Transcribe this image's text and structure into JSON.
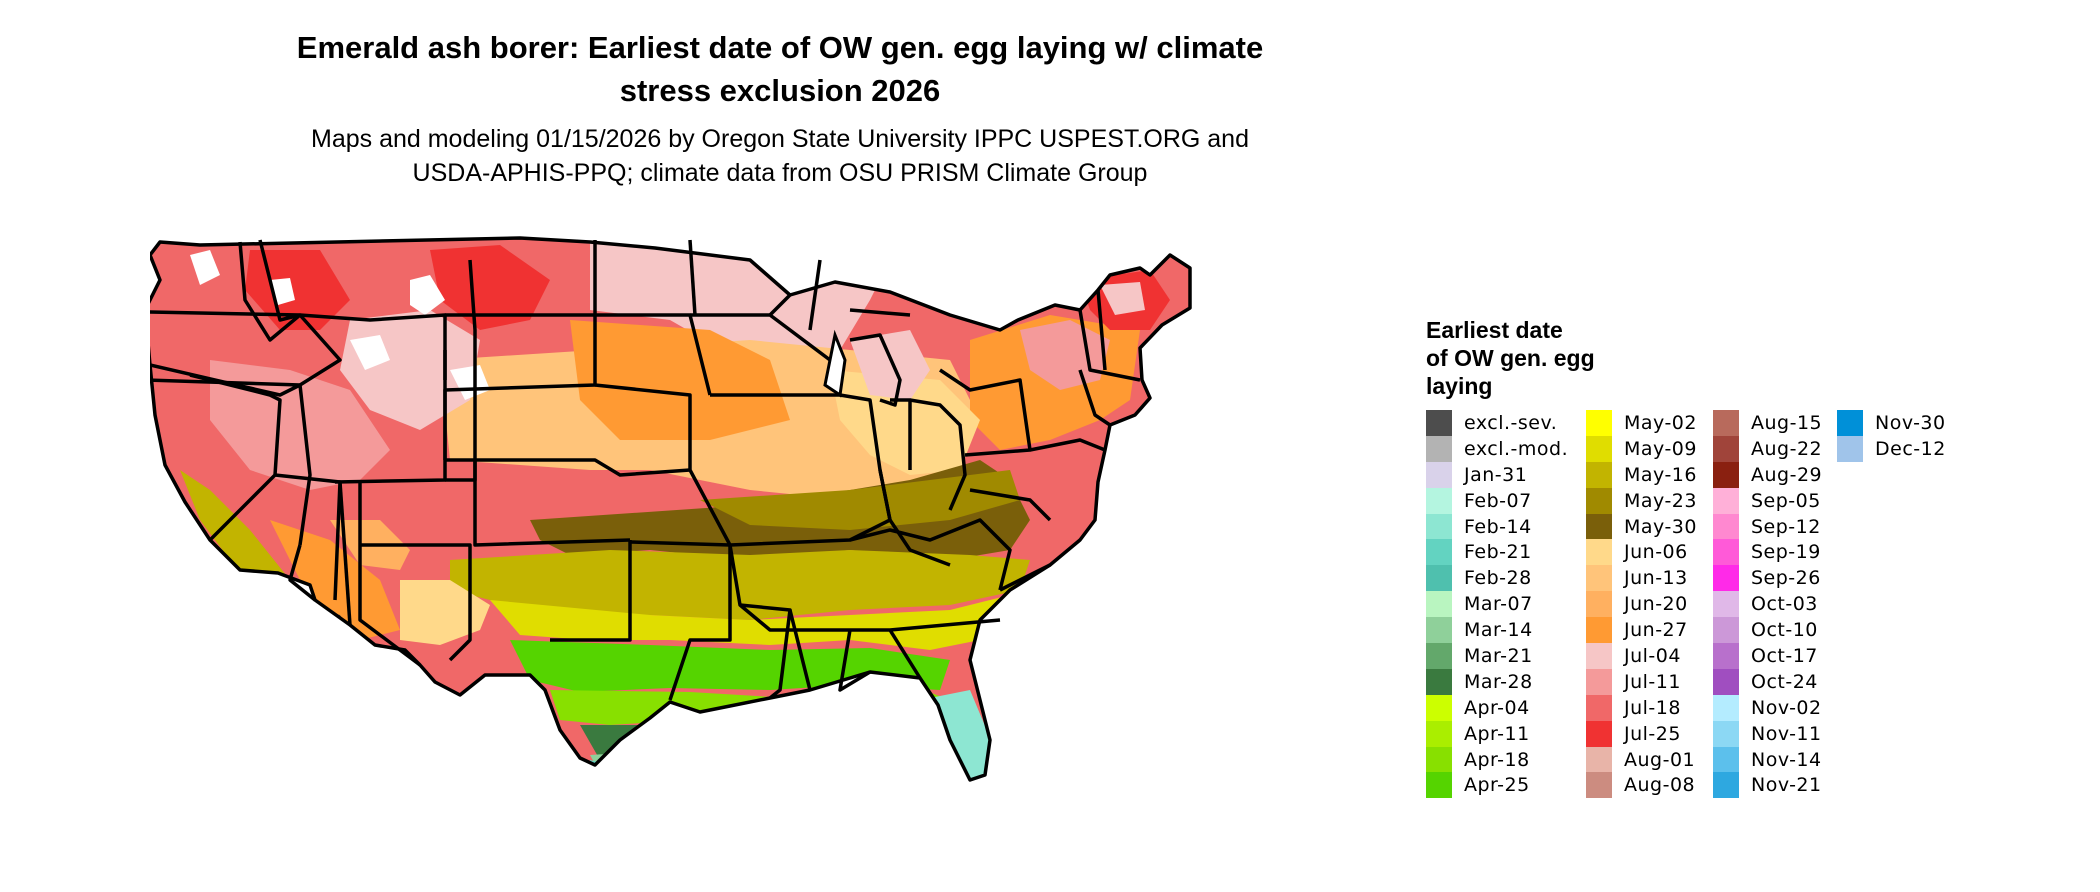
{
  "title_line1": "Emerald ash borer: Earliest date of OW gen. egg laying w/ climate",
  "title_line2": "stress exclusion 2026",
  "subtitle_line1": "Maps and modeling 01/15/2026 by Oregon State University IPPC USPEST.ORG and",
  "subtitle_line2": "USDA-APHIS-PPQ; climate data from OSU PRISM Climate Group",
  "legend": {
    "title_line1": "Earliest date",
    "title_line2": "of OW gen. egg",
    "title_line3": "laying",
    "columns": [
      [
        {
          "label": "excl.-sev.",
          "color": "#4d4d4d"
        },
        {
          "label": "excl.-mod.",
          "color": "#b3b3b3"
        },
        {
          "label": "Jan-31",
          "color": "#d9d2ea"
        },
        {
          "label": "Feb-07",
          "color": "#b4f5e0"
        },
        {
          "label": "Feb-14",
          "color": "#8de6d2"
        },
        {
          "label": "Feb-21",
          "color": "#63d3c1"
        },
        {
          "label": "Feb-28",
          "color": "#4fc0ae"
        },
        {
          "label": "Mar-07",
          "color": "#b9f5c0"
        },
        {
          "label": "Mar-14",
          "color": "#8fd09a"
        },
        {
          "label": "Mar-21",
          "color": "#63a86b"
        },
        {
          "label": "Mar-28",
          "color": "#3a7a3f"
        },
        {
          "label": "Apr-04",
          "color": "#ccff00"
        },
        {
          "label": "Apr-11",
          "color": "#aaee00"
        },
        {
          "label": "Apr-18",
          "color": "#88e000"
        },
        {
          "label": "Apr-25",
          "color": "#55d400"
        }
      ],
      [
        {
          "label": "May-02",
          "color": "#ffff00"
        },
        {
          "label": "May-09",
          "color": "#e0dd00"
        },
        {
          "label": "May-16",
          "color": "#c2b400"
        },
        {
          "label": "May-23",
          "color": "#a08a00"
        },
        {
          "label": "May-30",
          "color": "#7a5f0a"
        },
        {
          "label": "Jun-06",
          "color": "#ffd98a"
        },
        {
          "label": "Jun-13",
          "color": "#ffc47a"
        },
        {
          "label": "Jun-20",
          "color": "#ffb060"
        },
        {
          "label": "Jun-27",
          "color": "#ff9a33"
        },
        {
          "label": "Jul-04",
          "color": "#f6c6c6"
        },
        {
          "label": "Jul-11",
          "color": "#f49a9a"
        },
        {
          "label": "Jul-18",
          "color": "#f06868"
        },
        {
          "label": "Jul-25",
          "color": "#f03232"
        },
        {
          "label": "Aug-01",
          "color": "#e8b4a8"
        },
        {
          "label": "Aug-08",
          "color": "#cc8c80"
        }
      ],
      [
        {
          "label": "Aug-15",
          "color": "#b86a5c"
        },
        {
          "label": "Aug-22",
          "color": "#a0443a"
        },
        {
          "label": "Aug-29",
          "color": "#8a2010"
        },
        {
          "label": "Sep-05",
          "color": "#ffb0d8"
        },
        {
          "label": "Sep-12",
          "color": "#ff88d0"
        },
        {
          "label": "Sep-19",
          "color": "#ff5ad8"
        },
        {
          "label": "Sep-26",
          "color": "#ff2ae8"
        },
        {
          "label": "Oct-03",
          "color": "#e0b8e8"
        },
        {
          "label": "Oct-10",
          "color": "#cc98d8"
        },
        {
          "label": "Oct-17",
          "color": "#b870cc"
        },
        {
          "label": "Oct-24",
          "color": "#a04ec0"
        },
        {
          "label": "Nov-02",
          "color": "#b4ecff"
        },
        {
          "label": "Nov-11",
          "color": "#8cd8f4"
        },
        {
          "label": "Nov-14",
          "color": "#5cc0ec"
        },
        {
          "label": "Nov-21",
          "color": "#2ea8e0"
        }
      ],
      [
        {
          "label": "Nov-30",
          "color": "#0090d8"
        },
        {
          "label": "Dec-12",
          "color": "#a0c4ea"
        }
      ]
    ]
  }
}
